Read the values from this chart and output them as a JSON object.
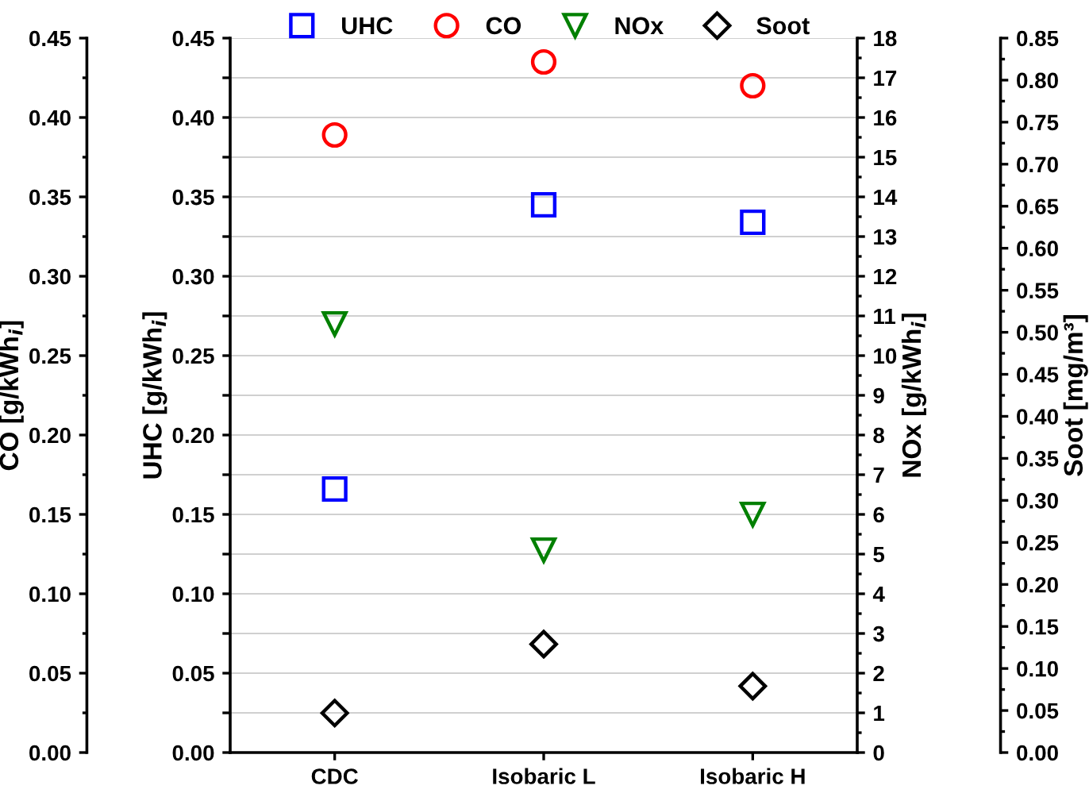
{
  "chart_data": [
    {
      "type": "scatter",
      "categories": [
        "CDC",
        "Isobaric L",
        "Isobaric H"
      ],
      "ylabel": "UHC [g/kWh$_{i}$]",
      "ylim": [
        0,
        0.45
      ],
      "yticks": [
        {
          "value": 0,
          "label": "0.00"
        },
        {
          "value": 0.025,
          "label": null
        },
        {
          "value": 0.05,
          "label": "0.05"
        },
        {
          "value": 0.075,
          "label": null
        },
        {
          "value": 0.1,
          "label": "0.10"
        },
        {
          "value": 0.125,
          "label": null
        },
        {
          "value": 0.15,
          "label": "0.15"
        },
        {
          "value": 0.175,
          "label": null
        },
        {
          "value": 0.2,
          "label": "0.20"
        },
        {
          "value": 0.225,
          "label": null
        },
        {
          "value": 0.25,
          "label": "0.25"
        },
        {
          "value": 0.275,
          "label": null
        },
        {
          "value": 0.3,
          "label": "0.30"
        },
        {
          "value": 0.325,
          "label": null
        },
        {
          "value": 0.35,
          "label": "0.35"
        },
        {
          "value": 0.375,
          "label": null
        },
        {
          "value": 0.4,
          "label": "0.40"
        },
        {
          "value": 0.425,
          "label": null
        },
        {
          "value": 0.45,
          "label": "0.45"
        }
      ],
      "y2label": "NOx [g/kWh$_{i}$]",
      "y2lim": [
        0,
        18
      ],
      "y2ticks": [
        0,
        1,
        2,
        3,
        4,
        5,
        6,
        7,
        8,
        9,
        10,
        11,
        12,
        13,
        14,
        15,
        16,
        17,
        18
      ],
      "grid": "y",
      "legend": "top",
      "series": [
        {
          "name": "UHC",
          "color": "#0000ff",
          "marker": "square",
          "values": [
            0.166,
            0.345,
            0.334
          ]
        },
        {
          "name": "NOx",
          "color": "#008000",
          "axis": "y2",
          "marker": "triangle",
          "values": [
            10.8,
            5.1,
            6.0
          ]
        }
      ]
    },
    {
      "type": "scatter",
      "tick_labels": "y",
      "ylabel": "CO [g/kWh$_{i}$]",
      "ylim": [
        0,
        0.45
      ],
      "yticks": [
        {
          "value": 0,
          "label": "0.00"
        },
        {
          "value": 0.05,
          "label": "0.05"
        },
        {
          "value": 0.1,
          "label": "0.10"
        },
        {
          "value": 0.15,
          "label": "0.15"
        },
        {
          "value": 0.2,
          "label": "0.20"
        },
        {
          "value": 0.25,
          "label": "0.25"
        },
        {
          "value": 0.3,
          "label": "0.30"
        },
        {
          "value": 0.35,
          "label": "0.35"
        },
        {
          "value": 0.4,
          "label": "0.40"
        },
        {
          "value": 0.45,
          "label": "0.45"
        }
      ],
      "y2label": "Soot [mg/m³]",
      "y2lim": [
        0,
        0.85
      ],
      "y2ticks": [
        {
          "value": 0,
          "label": "0.00"
        },
        {
          "value": 0.05,
          "label": "0.05"
        },
        {
          "value": 0.1,
          "label": "0.10"
        },
        {
          "value": 0.15,
          "label": "0.15"
        },
        {
          "value": 0.2,
          "label": "0.20"
        },
        {
          "value": 0.25,
          "label": "0.25"
        },
        {
          "value": 0.3,
          "label": "0.30"
        },
        {
          "value": 0.35,
          "label": "0.35"
        },
        {
          "value": 0.4,
          "label": "0.40"
        },
        {
          "value": 0.45,
          "label": "0.45"
        },
        {
          "value": 0.5,
          "label": "0.50"
        },
        {
          "value": 0.55,
          "label": "0.55"
        },
        {
          "value": 0.6,
          "label": "0.60"
        },
        {
          "value": 0.65,
          "label": "0.65"
        },
        {
          "value": 0.7,
          "label": "0.70"
        },
        {
          "value": 0.75,
          "label": "0.75"
        },
        {
          "value": 0.8,
          "label": "0.80"
        },
        {
          "value": 0.85,
          "label": "0.85"
        }
      ],
      "legend": "top",
      "series": [
        {
          "name": "CO",
          "color": "#ff0000",
          "marker": "circle",
          "values": [
            0.389,
            0.435,
            0.42
          ]
        },
        {
          "name": "Soot",
          "color": "#000000",
          "axis": "y2",
          "marker": "diamond",
          "values": [
            0.047,
            0.129,
            0.079
          ]
        }
      ]
    }
  ]
}
